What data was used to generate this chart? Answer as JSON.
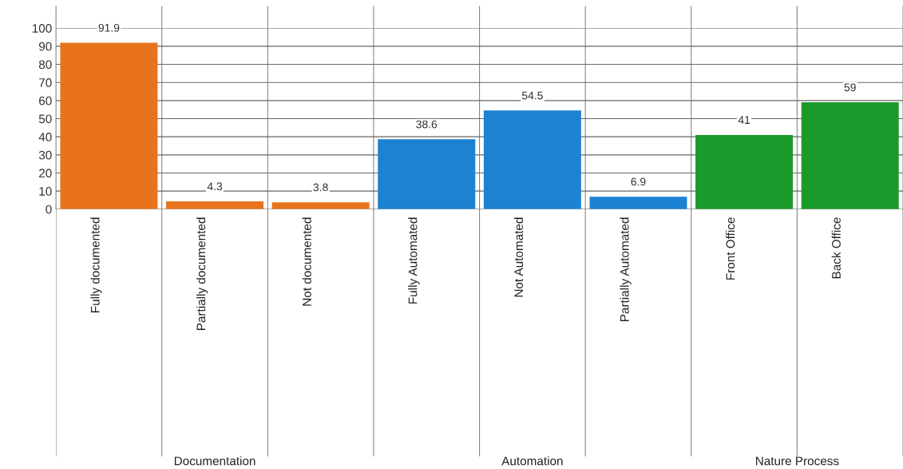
{
  "chart_data": {
    "type": "bar",
    "categories": [
      "Fully documented",
      "Partially documented",
      "Not documented",
      "Fully Automated",
      "Not Automated",
      "Partially Automated",
      "Front Office",
      "Back Office"
    ],
    "values": [
      91.9,
      4.3,
      3.8,
      38.6,
      54.5,
      6.9,
      41,
      59
    ],
    "colors": [
      "#e8731c",
      "#e8731c",
      "#e8731c",
      "#1e82d2",
      "#1e82d2",
      "#1e82d2",
      "#1a9a2a",
      "#1a9a2a"
    ],
    "data_labels": true,
    "ylim": [
      0,
      100
    ],
    "yticks": [
      0,
      10,
      20,
      30,
      40,
      50,
      60,
      70,
      80,
      90,
      100
    ],
    "grid": true,
    "annotations": [
      "Documentation",
      "Automation",
      "Nature Process"
    ]
  }
}
